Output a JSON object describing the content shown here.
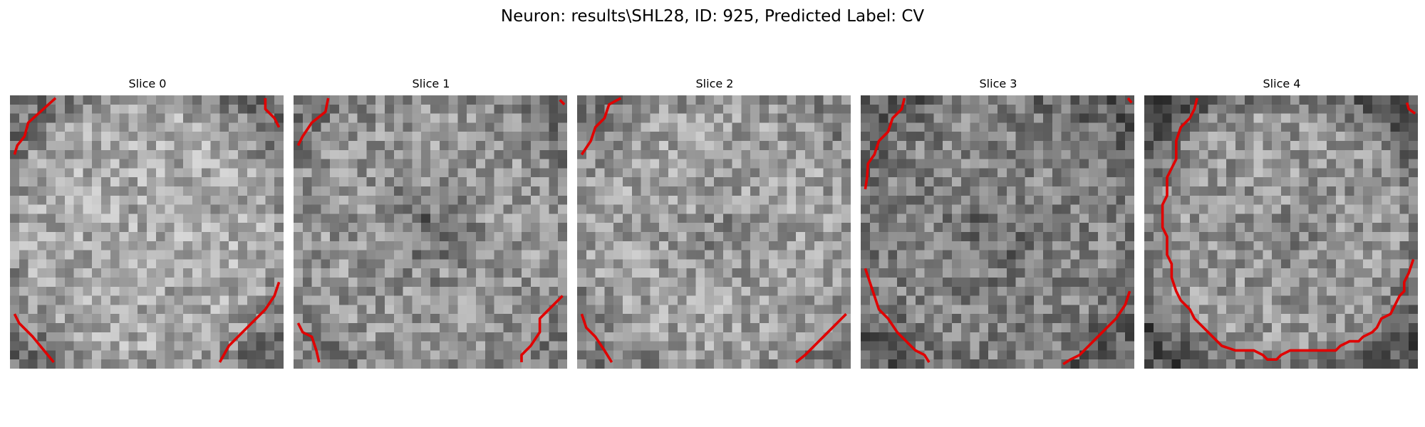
{
  "figure": {
    "title": "Neuron: results\\SHL28, ID: 925, Predicted Label: CV",
    "colormap": "gray",
    "contour_color": "#ff0000"
  },
  "slices": [
    {
      "label": "Slice 0"
    },
    {
      "label": "Slice 1"
    },
    {
      "label": "Slice 2"
    },
    {
      "label": "Slice 3"
    },
    {
      "label": "Slice 4"
    }
  ]
}
